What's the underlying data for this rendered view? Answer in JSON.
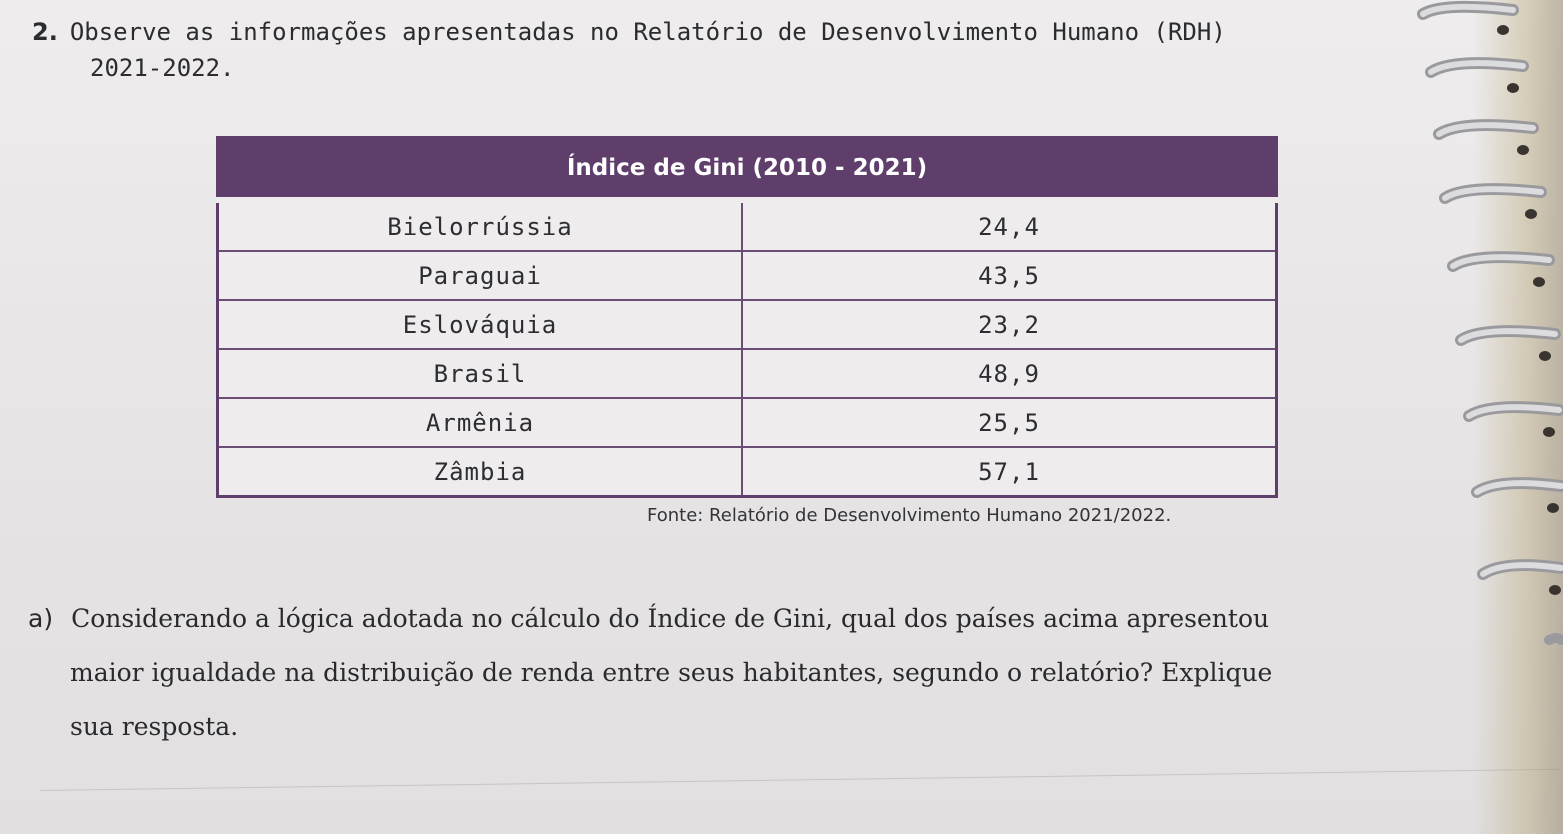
{
  "question": {
    "number": "2.",
    "text_line1": "Observe as informações apresentadas no Relatório de Desenvolvimento Humano (RDH)",
    "text_line2": "2021-2022."
  },
  "table": {
    "header": "Índice de Gini (2010 - 2021)",
    "rows": [
      {
        "country": "Bielorrússia",
        "value": "24,4"
      },
      {
        "country": "Paraguai",
        "value": "43,5"
      },
      {
        "country": "Eslováquia",
        "value": "23,2"
      },
      {
        "country": "Brasil",
        "value": "48,9"
      },
      {
        "country": "Armênia",
        "value": "25,5"
      },
      {
        "country": "Zâmbia",
        "value": "57,1"
      }
    ],
    "source": "Fonte: Relatório de Desenvolvimento Humano 2021/2022."
  },
  "sub_question": {
    "letter": "a)",
    "line1": "Considerando a lógica adotada no cálculo do Índice de Gini, qual dos países acima apresentou",
    "line2": "maior igualdade na distribuição de renda entre seus habitantes, segundo o relatório? Explique",
    "line3": "sua resposta."
  },
  "colors": {
    "header_bg": "#5f3e6b",
    "border": "#6a4c74",
    "paper": "#eeecec"
  }
}
